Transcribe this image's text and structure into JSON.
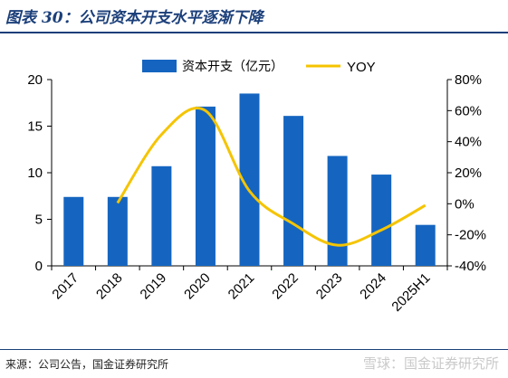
{
  "header": {
    "figure_title": "图表 30：公司资本开支水平逐渐下降"
  },
  "footer": {
    "source": "来源：公司公告，国金证券研究所",
    "watermark": "雪球：国金证券研究所"
  },
  "colors": {
    "bar": "#1565c0",
    "line": "#f5c400",
    "title": "#1b3f7a"
  },
  "chart_data": {
    "type": "bar",
    "categories": [
      "2017",
      "2018",
      "2019",
      "2020",
      "2021",
      "2022",
      "2023",
      "2024",
      "2025H1"
    ],
    "series": [
      {
        "name": "资本开支（亿元）",
        "type": "bar",
        "axis": "left",
        "values": [
          7.4,
          7.4,
          10.7,
          17.1,
          18.5,
          16.1,
          11.8,
          9.8,
          4.4
        ]
      },
      {
        "name": "YOY",
        "type": "line",
        "axis": "right",
        "smooth": true,
        "values": [
          null,
          0.5,
          44.6,
          60.0,
          8.2,
          -13.0,
          -26.7,
          -16.9,
          -1.0
        ]
      }
    ],
    "y_left": {
      "ylim": [
        0,
        20
      ],
      "ticks": [
        "0",
        "5",
        "10",
        "15",
        "20"
      ],
      "tick_values": [
        0,
        5,
        10,
        15,
        20
      ]
    },
    "y_right": {
      "ylim": [
        -40,
        80
      ],
      "ticks": [
        "-40%",
        "-20%",
        "0%",
        "20%",
        "40%",
        "60%",
        "80%"
      ],
      "tick_values": [
        -40,
        -20,
        0,
        20,
        40,
        60,
        80
      ]
    },
    "legend_position": "top-center",
    "grid": false
  }
}
